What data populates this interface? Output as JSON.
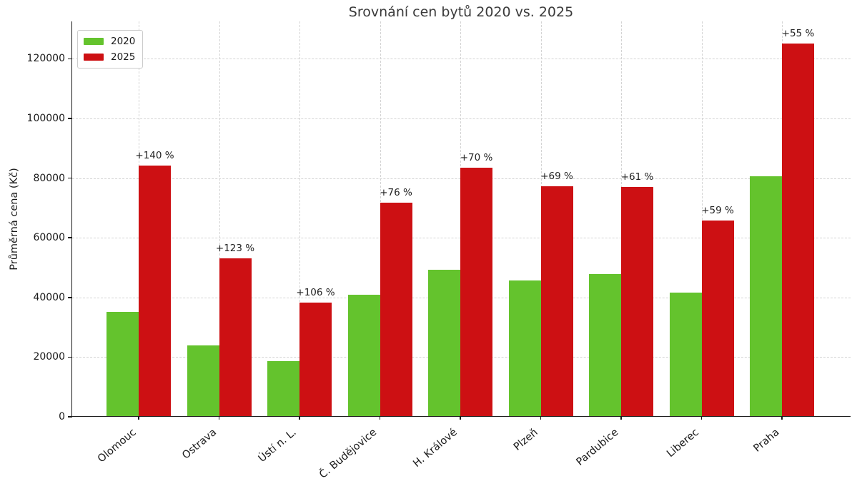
{
  "chart_data": {
    "type": "bar",
    "title": "Srovnání cen bytů 2020 vs. 2025",
    "xlabel": "",
    "ylabel": "Průměrná cena (Kč)",
    "categories": [
      "Olomouc",
      "Ostrava",
      "Ústí n. L.",
      "Č. Budějovice",
      "H. Králové",
      "Plzeň",
      "Pardubice",
      "Liberec",
      "Praha"
    ],
    "series": [
      {
        "name": "2020",
        "color": "#64c32d",
        "values": [
          35000,
          23700,
          18500,
          40700,
          49000,
          45500,
          47600,
          41300,
          80400
        ]
      },
      {
        "name": "2025",
        "color": "#cd1013",
        "values": [
          84000,
          52900,
          38100,
          71600,
          83300,
          76900,
          76700,
          65600,
          124800
        ]
      }
    ],
    "bar_annotations": [
      "+140 %",
      "+123 %",
      "+106 %",
      "+76 %",
      "+70 %",
      "+69 %",
      "+61 %",
      "+59 %",
      "+55 %"
    ],
    "yticks": [
      0,
      20000,
      40000,
      60000,
      80000,
      100000,
      120000
    ],
    "ylim": [
      0,
      132500
    ],
    "grid": "both, dashed, light-gray",
    "legend_position": "upper left",
    "colors": {
      "grid": "#d3d3d3",
      "axis": "#1a1a1a",
      "title_text": "#3a3a3a"
    }
  }
}
